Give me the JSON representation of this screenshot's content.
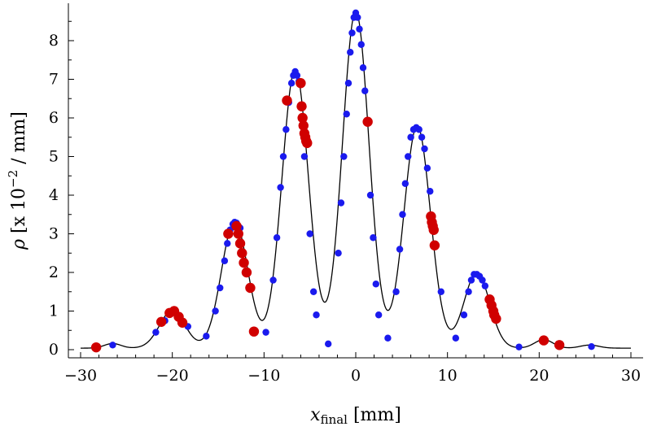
{
  "chart_data": {
    "type": "scatter",
    "title": "",
    "xlabel": {
      "symbol": "x",
      "subscript": "final",
      "unit": "[mm]"
    },
    "ylabel": {
      "symbol": "ρ",
      "unit": "[x 10",
      "exp": "−2",
      "unit_end": " / mm]"
    },
    "xlim": [
      -30,
      30
    ],
    "ylim": [
      -0.2,
      8.9
    ],
    "xticks": [
      -30,
      -20,
      -10,
      0,
      10,
      20,
      30
    ],
    "yticks": [
      0,
      1,
      2,
      3,
      4,
      5,
      6,
      7,
      8
    ],
    "curve": {
      "name": "density profile",
      "color": "#000000",
      "peaks": [
        {
          "x": -26.5,
          "y": 0.12,
          "w": 0.9
        },
        {
          "x": -20.0,
          "y": 0.97,
          "w": 1.4
        },
        {
          "x": -13.2,
          "y": 3.28,
          "w": 1.45
        },
        {
          "x": -6.6,
          "y": 7.22,
          "w": 1.45
        },
        {
          "x": 0.0,
          "y": 8.72,
          "w": 1.45
        },
        {
          "x": 6.7,
          "y": 5.75,
          "w": 1.45
        },
        {
          "x": 13.2,
          "y": 1.95,
          "w": 1.4
        },
        {
          "x": 20.5,
          "y": 0.22,
          "w": 1.0
        },
        {
          "x": 25.5,
          "y": 0.08,
          "w": 1.0
        }
      ],
      "baseline": 0.04
    },
    "series": [
      {
        "name": "blue points",
        "color": "#1a1aee",
        "x": [
          -26.5,
          -21.8,
          -20.8,
          -18.3,
          -16.3,
          -15.3,
          -14.8,
          -14.3,
          -14.0,
          -13.7,
          -13.4,
          -13.2,
          -13.0,
          -12.8,
          -12.6,
          -9.8,
          -9.0,
          -8.6,
          -8.2,
          -7.9,
          -7.6,
          -7.3,
          -7.0,
          -6.8,
          -6.6,
          -6.4,
          -6.2,
          -5.6,
          -5.0,
          -4.6,
          -4.3,
          -3.0,
          -1.9,
          -1.6,
          -1.3,
          -1.0,
          -0.8,
          -0.6,
          -0.4,
          -0.2,
          0.0,
          0.2,
          0.4,
          0.6,
          0.8,
          1.0,
          1.6,
          1.9,
          2.2,
          2.5,
          3.5,
          4.4,
          4.8,
          5.1,
          5.4,
          5.7,
          6.0,
          6.3,
          6.6,
          6.9,
          7.2,
          7.5,
          7.8,
          8.1,
          9.3,
          10.9,
          11.8,
          12.3,
          12.6,
          12.9,
          13.2,
          13.5,
          13.8,
          14.1,
          17.8,
          25.7
        ],
        "y": [
          0.12,
          0.45,
          0.75,
          0.6,
          0.35,
          1.0,
          1.6,
          2.3,
          2.75,
          3.1,
          3.25,
          3.3,
          3.28,
          3.2,
          3.15,
          0.45,
          1.8,
          2.9,
          4.2,
          5.0,
          5.7,
          6.4,
          6.9,
          7.1,
          7.2,
          7.1,
          6.95,
          5.0,
          3.0,
          1.5,
          0.9,
          0.15,
          2.5,
          3.8,
          5.0,
          6.1,
          6.9,
          7.7,
          8.2,
          8.6,
          8.72,
          8.6,
          8.3,
          7.9,
          7.3,
          6.7,
          4.0,
          2.9,
          1.7,
          0.9,
          0.3,
          1.5,
          2.6,
          3.5,
          4.3,
          5.0,
          5.5,
          5.7,
          5.75,
          5.7,
          5.5,
          5.2,
          4.7,
          4.1,
          1.5,
          0.3,
          0.9,
          1.5,
          1.8,
          1.95,
          1.95,
          1.9,
          1.8,
          1.65,
          0.07,
          0.08
        ]
      },
      {
        "name": "red points",
        "color": "#d00000",
        "x": [
          -28.3,
          -21.2,
          -20.3,
          -19.8,
          -19.3,
          -18.9,
          -13.9,
          -13.0,
          -12.8,
          -12.6,
          -12.4,
          -12.2,
          -11.9,
          -11.5,
          -11.1,
          -7.5,
          -6.0,
          -5.9,
          -5.8,
          -5.7,
          -5.6,
          -5.5,
          -5.4,
          -5.3,
          1.3,
          8.2,
          8.3,
          8.4,
          8.5,
          8.6,
          14.6,
          14.8,
          15.0,
          15.1,
          15.3,
          20.5,
          22.2
        ],
        "y": [
          0.06,
          0.72,
          0.95,
          1.0,
          0.85,
          0.7,
          3.0,
          3.2,
          3.0,
          2.75,
          2.5,
          2.25,
          2.0,
          1.6,
          0.47,
          6.45,
          6.9,
          6.3,
          6.0,
          5.8,
          5.6,
          5.5,
          5.4,
          5.35,
          5.9,
          3.45,
          3.3,
          3.2,
          3.1,
          2.7,
          1.3,
          1.15,
          1.0,
          0.9,
          0.8,
          0.24,
          0.12
        ]
      }
    ]
  }
}
